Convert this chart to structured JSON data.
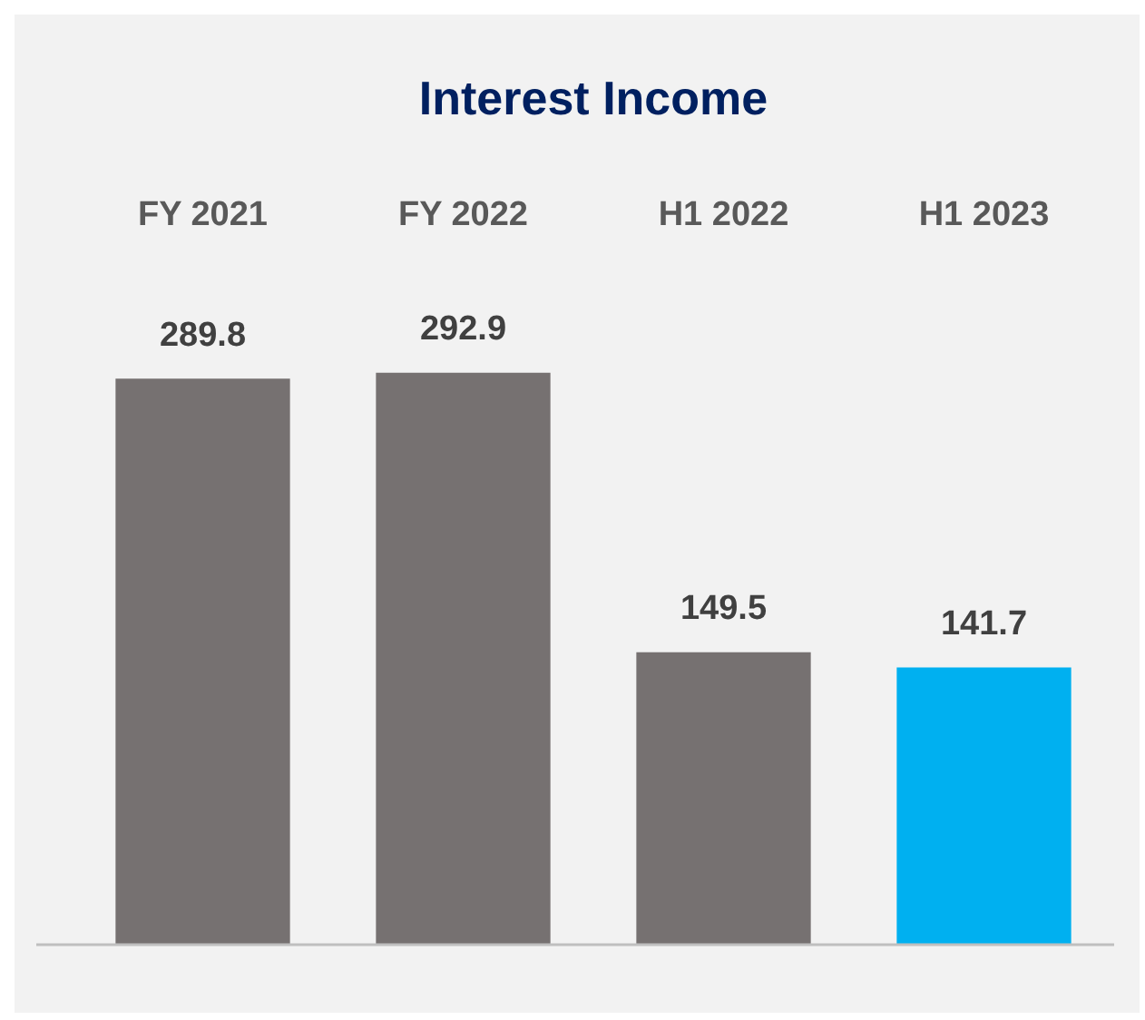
{
  "chart_data": {
    "type": "bar",
    "title": "Interest Income",
    "categories": [
      "FY 2021",
      "FY 2022",
      "H1 2022",
      "H1 2023"
    ],
    "values": [
      289.8,
      292.9,
      149.5,
      141.7
    ],
    "colors": [
      "#767171",
      "#767171",
      "#767171",
      "#00b0f0"
    ],
    "data_labels": true,
    "grid": false,
    "legend": false
  }
}
